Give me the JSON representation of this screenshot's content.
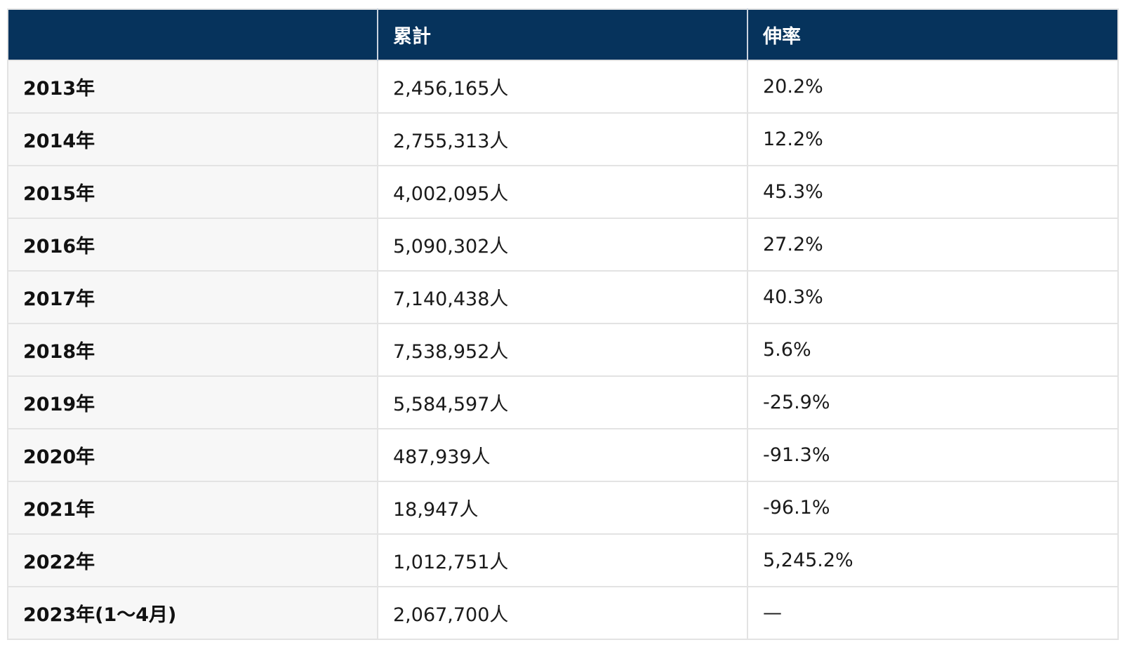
{
  "table": {
    "headers": [
      "",
      "累計",
      "伸率"
    ],
    "rows": [
      {
        "year": "2013年",
        "total": "2,456,165人",
        "growth": "20.2%"
      },
      {
        "year": "2014年",
        "total": "2,755,313人",
        "growth": "12.2%"
      },
      {
        "year": "2015年",
        "total": "4,002,095人",
        "growth": "45.3%"
      },
      {
        "year": "2016年",
        "total": "5,090,302人",
        "growth": "27.2%"
      },
      {
        "year": "2017年",
        "total": "7,140,438人",
        "growth": "40.3%"
      },
      {
        "year": "2018年",
        "total": "7,538,952人",
        "growth": "5.6%"
      },
      {
        "year": "2019年",
        "total": "5,584,597人",
        "growth": "-25.9%"
      },
      {
        "year": "2020年",
        "total": "487,939人",
        "growth": "-91.3%"
      },
      {
        "year": "2021年",
        "total": "18,947人",
        "growth": "-96.1%"
      },
      {
        "year": "2022年",
        "total": "1,012,751人",
        "growth": "5,245.2%"
      },
      {
        "year": "2023年(1〜4月)",
        "total": "2,067,700人",
        "growth": "—"
      }
    ]
  },
  "colors": {
    "header_bg": "#06335c",
    "header_text": "#ffffff",
    "row_label_bg": "#f7f7f7",
    "border": "#e3e3e3"
  }
}
